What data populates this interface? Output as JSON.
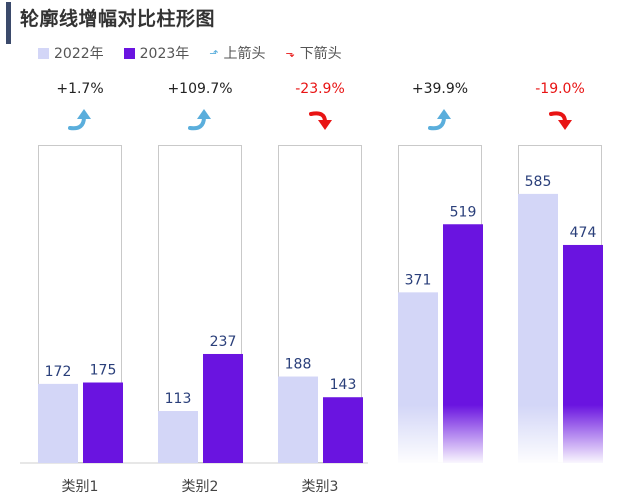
{
  "title": "轮廓线增幅对比柱形图",
  "legend": [
    {
      "label": "2022年",
      "color": "#d3d6f7",
      "marker": "square"
    },
    {
      "label": "2023年",
      "color": "#6a14e0",
      "marker": "square"
    },
    {
      "label": "上箭头",
      "color": "#5aaedc",
      "marker": "up-arrow-icon"
    },
    {
      "label": "下箭头",
      "color": "#e81414",
      "marker": "down-arrow-icon"
    }
  ],
  "chart_data": {
    "type": "bar",
    "title": "轮廓线增幅对比柱形图",
    "categories": [
      "类别1",
      "类别2",
      "类别3",
      "",
      ""
    ],
    "series": [
      {
        "name": "2022年",
        "values": [
          172,
          113,
          188,
          371,
          585
        ],
        "color": "#d3d6f7"
      },
      {
        "name": "2023年",
        "values": [
          175,
          237,
          143,
          519,
          474
        ],
        "color": "#6a14e0"
      }
    ],
    "changes": [
      "+1.7%",
      "+109.7%",
      "-23.9%",
      "+39.9%",
      "-19.0%"
    ],
    "change_direction": [
      "up",
      "up",
      "down",
      "up",
      "down"
    ],
    "colors": {
      "up": "#5aaedc",
      "down": "#e81414",
      "positive_text": "#222222",
      "negative_text": "#e81414",
      "value_label": "#2a3f7a"
    },
    "ylim": [
      0,
      600
    ]
  }
}
